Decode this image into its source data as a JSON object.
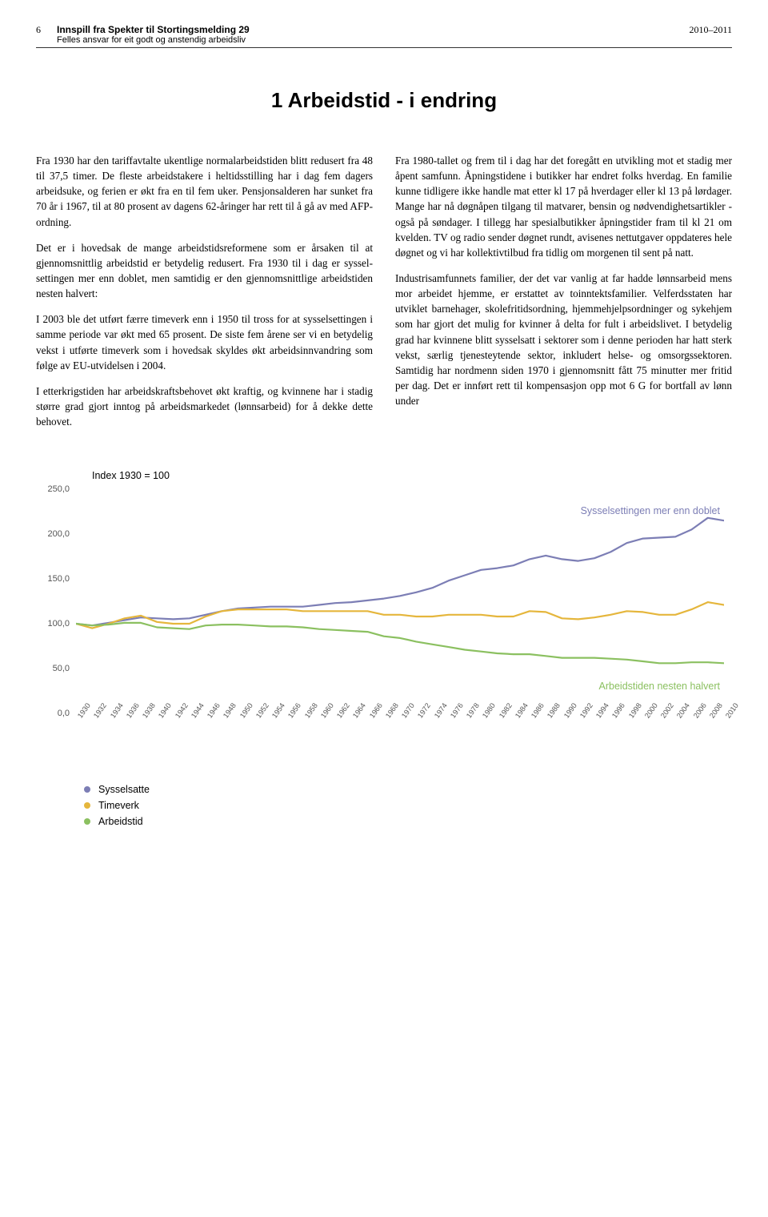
{
  "header": {
    "page_no": "6",
    "title": "Innspill fra Spekter til Stortingsmelding 29",
    "subtitle": "Felles ansvar for eit godt og anstendig arbeidsliv",
    "year_range": "2010–2011"
  },
  "section_heading": "1  Arbeidstid - i endring",
  "body": {
    "left": [
      "Fra 1930 har den tariffavtalte ukentlige normalarbeids­tiden blitt redusert fra 48 til 37,5 timer. De fleste arbeidstakere i heltidsstilling har i dag fem dagers arbeidsuke, og ferien er økt fra en til fem uker. Pensjonsalderen har sunket fra 70 år i 1967, til at 80 prosent av dagens 62-åringer har rett til å gå av med AFP-ordning.",
      "Det er i hovedsak de mange arbeidstidsreformene som er årsaken til at gjennomsnittlig arbeidstid er betydelig redusert. Fra 1930 til i dag er syssel­settingen mer enn doblet, men samtidig er den gjennomsnittlige arbeidstiden nesten halvert:",
      "I 2003 ble det utført færre timeverk enn i 1950 til tross for at sysselsettingen i samme periode var økt med 65 prosent. De siste fem årene ser vi en betydelig vekst i utførte timeverk som i hovedsak skyldes økt arbeidsinnvandring som følge av EU-utvidelsen i 2004.",
      "I etterkrigstiden har arbeidskraftsbehovet økt kraftig, og kvinnene har i stadig større grad gjort inntog på arbeidsmarkedet (lønnsarbeid) for å dekke dette behovet."
    ],
    "right": [
      "Fra 1980-tallet og frem til i dag har det foregått en utvikling mot et stadig mer åpent samfunn. Åpningstidene i butikker har endret folks hverdag. En familie kunne tidligere ikke handle mat etter kl 17 på hverdager eller kl 13 på lørdager. Mange har nå døgnåpen tilgang til matvarer, bensin og nødvendighetsartikler - også på søndager. I tillegg har spesialbutikker åpningstider fram til kl 21 om kvelden. TV og radio sender døgnet rundt, avisenes nettutgaver oppdateres hele døgnet og vi har kollektivtilbud fra tidlig om morgenen til sent på natt.",
      "Industrisamfunnets familier, der det var vanlig at far hadde lønnsarbeid mens mor arbeidet hjemme, er erstattet av toinntektsfamilier. Velferdsstaten har utviklet barnehager, skolefritidsordning, hjemmehjelpsordninger og sykehjem som har gjort det mulig for kvinner å delta for fult i arbeidslivet. I betydelig grad har kvinnene blitt sysselsatt i sektorer som i denne perioden har hatt sterk vekst, særlig tjenesteytende sektor, inkludert helse- og omsorgssektoren. Samtidig har nordmenn siden 1970 i gjennomsnitt fått 75 minutter mer fritid per dag. Det er innført rett til kompensasjon opp mot 6 G for bortfall av lønn under"
    ]
  },
  "chart": {
    "title": "Index 1930 = 100",
    "type": "line",
    "xlim": [
      1930,
      2010
    ],
    "ylim": [
      0,
      250
    ],
    "y_ticks": [
      "0,0",
      "50,0",
      "100,0",
      "150,0",
      "200,0",
      "250,0"
    ],
    "y_tick_values": [
      0,
      50,
      100,
      150,
      200,
      250
    ],
    "x_ticks": [
      1930,
      1932,
      1934,
      1936,
      1938,
      1940,
      1942,
      1944,
      1946,
      1948,
      1950,
      1952,
      1954,
      1956,
      1958,
      1960,
      1962,
      1964,
      1966,
      1968,
      1970,
      1972,
      1974,
      1976,
      1978,
      1980,
      1982,
      1984,
      1986,
      1988,
      1990,
      1992,
      1994,
      1996,
      1998,
      2000,
      2002,
      2004,
      2006,
      2008,
      2010
    ],
    "annotations": {
      "top": {
        "text": "Sysselsettingen mer enn doblet",
        "color": "#7c7eb5",
        "y_value": 225
      },
      "bottom": {
        "text": "Arbeidstiden nesten halvert",
        "color": "#8bc060",
        "y_value": 30
      }
    },
    "series": [
      {
        "name": "Sysselsatte",
        "color": "#7c7eb5",
        "line_width": 2.2,
        "points": [
          [
            1930,
            100
          ],
          [
            1932,
            98
          ],
          [
            1934,
            101
          ],
          [
            1936,
            104
          ],
          [
            1938,
            107
          ],
          [
            1940,
            106
          ],
          [
            1942,
            105
          ],
          [
            1944,
            106
          ],
          [
            1946,
            110
          ],
          [
            1948,
            114
          ],
          [
            1950,
            117
          ],
          [
            1952,
            118
          ],
          [
            1954,
            119
          ],
          [
            1956,
            119
          ],
          [
            1958,
            119
          ],
          [
            1960,
            121
          ],
          [
            1962,
            123
          ],
          [
            1964,
            124
          ],
          [
            1966,
            126
          ],
          [
            1968,
            128
          ],
          [
            1970,
            131
          ],
          [
            1972,
            135
          ],
          [
            1974,
            140
          ],
          [
            1976,
            148
          ],
          [
            1978,
            154
          ],
          [
            1980,
            160
          ],
          [
            1982,
            162
          ],
          [
            1984,
            165
          ],
          [
            1986,
            172
          ],
          [
            1988,
            176
          ],
          [
            1990,
            172
          ],
          [
            1992,
            170
          ],
          [
            1994,
            173
          ],
          [
            1996,
            180
          ],
          [
            1998,
            190
          ],
          [
            2000,
            195
          ],
          [
            2002,
            196
          ],
          [
            2004,
            197
          ],
          [
            2006,
            205
          ],
          [
            2008,
            218
          ],
          [
            2010,
            215
          ]
        ]
      },
      {
        "name": "Timeverk",
        "color": "#e5b63c",
        "line_width": 2.2,
        "points": [
          [
            1930,
            100
          ],
          [
            1932,
            95
          ],
          [
            1934,
            100
          ],
          [
            1936,
            106
          ],
          [
            1938,
            109
          ],
          [
            1940,
            102
          ],
          [
            1942,
            100
          ],
          [
            1944,
            100
          ],
          [
            1946,
            108
          ],
          [
            1948,
            114
          ],
          [
            1950,
            116
          ],
          [
            1952,
            116
          ],
          [
            1954,
            116
          ],
          [
            1956,
            116
          ],
          [
            1958,
            114
          ],
          [
            1960,
            114
          ],
          [
            1962,
            114
          ],
          [
            1964,
            114
          ],
          [
            1966,
            114
          ],
          [
            1968,
            110
          ],
          [
            1970,
            110
          ],
          [
            1972,
            108
          ],
          [
            1974,
            108
          ],
          [
            1976,
            110
          ],
          [
            1978,
            110
          ],
          [
            1980,
            110
          ],
          [
            1982,
            108
          ],
          [
            1984,
            108
          ],
          [
            1986,
            114
          ],
          [
            1988,
            113
          ],
          [
            1990,
            106
          ],
          [
            1992,
            105
          ],
          [
            1994,
            107
          ],
          [
            1996,
            110
          ],
          [
            1998,
            114
          ],
          [
            2000,
            113
          ],
          [
            2002,
            110
          ],
          [
            2004,
            110
          ],
          [
            2006,
            116
          ],
          [
            2008,
            124
          ],
          [
            2010,
            121
          ]
        ]
      },
      {
        "name": "Arbeidstid",
        "color": "#8bc060",
        "line_width": 2.2,
        "points": [
          [
            1930,
            100
          ],
          [
            1932,
            98
          ],
          [
            1934,
            99
          ],
          [
            1936,
            101
          ],
          [
            1938,
            101
          ],
          [
            1940,
            96
          ],
          [
            1942,
            95
          ],
          [
            1944,
            94
          ],
          [
            1946,
            98
          ],
          [
            1948,
            99
          ],
          [
            1950,
            99
          ],
          [
            1952,
            98
          ],
          [
            1954,
            97
          ],
          [
            1956,
            97
          ],
          [
            1958,
            96
          ],
          [
            1960,
            94
          ],
          [
            1962,
            93
          ],
          [
            1964,
            92
          ],
          [
            1966,
            91
          ],
          [
            1968,
            86
          ],
          [
            1970,
            84
          ],
          [
            1972,
            80
          ],
          [
            1974,
            77
          ],
          [
            1976,
            74
          ],
          [
            1978,
            71
          ],
          [
            1980,
            69
          ],
          [
            1982,
            67
          ],
          [
            1984,
            66
          ],
          [
            1986,
            66
          ],
          [
            1988,
            64
          ],
          [
            1990,
            62
          ],
          [
            1992,
            62
          ],
          [
            1994,
            62
          ],
          [
            1996,
            61
          ],
          [
            1998,
            60
          ],
          [
            2000,
            58
          ],
          [
            2002,
            56
          ],
          [
            2004,
            56
          ],
          [
            2006,
            57
          ],
          [
            2008,
            57
          ],
          [
            2010,
            56
          ]
        ]
      }
    ],
    "legend": [
      {
        "label": "Sysselsatte",
        "color": "#7c7eb5"
      },
      {
        "label": "Timeverk",
        "color": "#e5b63c"
      },
      {
        "label": "Arbeidstid",
        "color": "#8bc060"
      }
    ]
  }
}
